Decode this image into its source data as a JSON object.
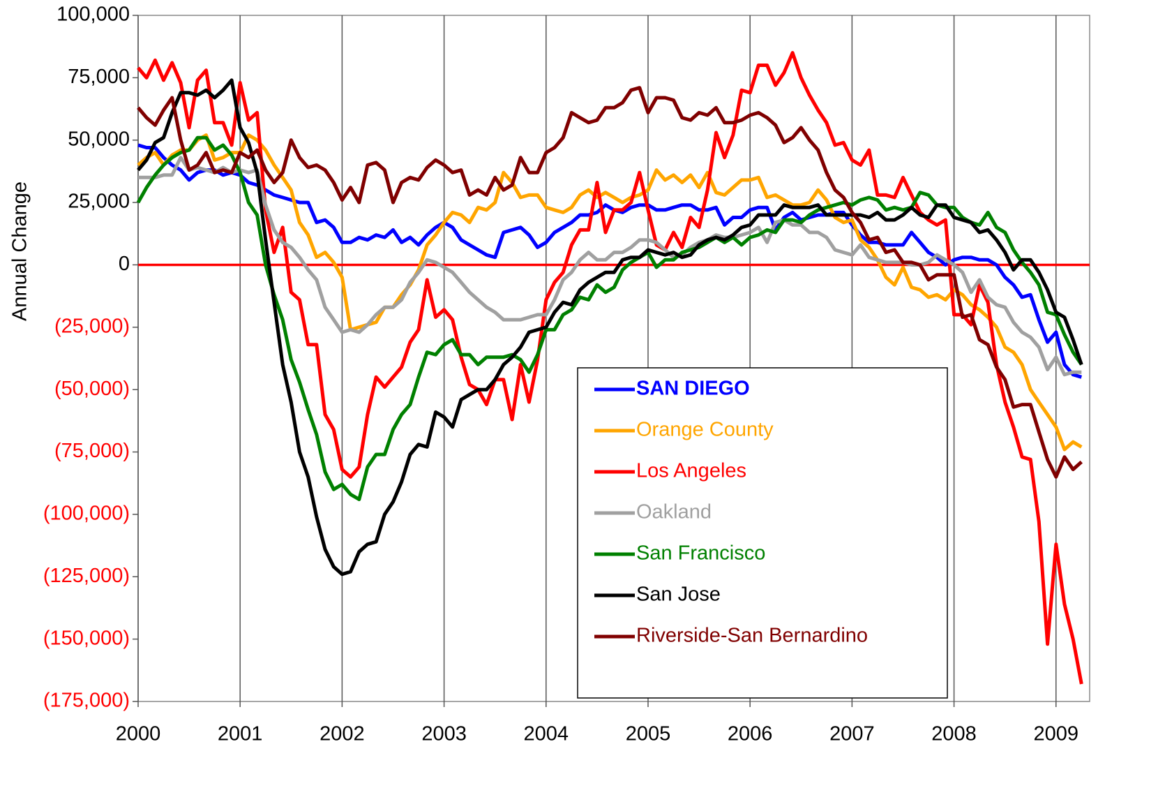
{
  "chart_data": {
    "type": "line",
    "ylabel": "Annual Change",
    "x": [
      2000,
      2000.083,
      2000.167,
      2000.25,
      2000.333,
      2000.417,
      2000.5,
      2000.583,
      2000.667,
      2000.75,
      2000.833,
      2000.917,
      2001,
      2001.083,
      2001.167,
      2001.25,
      2001.333,
      2001.417,
      2001.5,
      2001.583,
      2001.667,
      2001.75,
      2001.833,
      2001.917,
      2002,
      2002.083,
      2002.167,
      2002.25,
      2002.333,
      2002.417,
      2002.5,
      2002.583,
      2002.667,
      2002.75,
      2002.833,
      2002.917,
      2003,
      2003.083,
      2003.167,
      2003.25,
      2003.333,
      2003.417,
      2003.5,
      2003.583,
      2003.667,
      2003.75,
      2003.833,
      2003.917,
      2004,
      2004.083,
      2004.167,
      2004.25,
      2004.333,
      2004.417,
      2004.5,
      2004.583,
      2004.667,
      2004.75,
      2004.833,
      2004.917,
      2005,
      2005.083,
      2005.167,
      2005.25,
      2005.333,
      2005.417,
      2005.5,
      2005.583,
      2005.667,
      2005.75,
      2005.833,
      2005.917,
      2006,
      2006.083,
      2006.167,
      2006.25,
      2006.333,
      2006.417,
      2006.5,
      2006.583,
      2006.667,
      2006.75,
      2006.833,
      2006.917,
      2007,
      2007.083,
      2007.167,
      2007.25,
      2007.333,
      2007.417,
      2007.5,
      2007.583,
      2007.667,
      2007.75,
      2007.833,
      2007.917,
      2008,
      2008.083,
      2008.167,
      2008.25,
      2008.333,
      2008.417,
      2008.5,
      2008.583,
      2008.667,
      2008.75,
      2008.833,
      2008.917,
      2009,
      2009.083,
      2009.167,
      2009.25
    ],
    "series": [
      {
        "name": "SAN DIEGO",
        "color": "#0000ff",
        "bold": true,
        "values": [
          48000,
          47000,
          47000,
          43000,
          40000,
          38000,
          34000,
          37000,
          38000,
          38000,
          36000,
          37000,
          36000,
          33000,
          32000,
          30000,
          28000,
          27000,
          26000,
          25000,
          25000,
          17000,
          18000,
          15000,
          9000,
          9000,
          11000,
          10000,
          12000,
          11000,
          14000,
          9000,
          11000,
          8000,
          12000,
          15000,
          17000,
          15000,
          10000,
          8000,
          6000,
          4000,
          3000,
          13000,
          14000,
          15000,
          12000,
          7000,
          9000,
          13000,
          15000,
          17000,
          20000,
          20000,
          21000,
          24000,
          22000,
          21000,
          23000,
          24000,
          24000,
          22000,
          22000,
          23000,
          24000,
          24000,
          22000,
          22000,
          23000,
          16000,
          19000,
          19000,
          22000,
          23000,
          23000,
          14000,
          19000,
          21000,
          18000,
          19000,
          20000,
          20000,
          21000,
          21000,
          16000,
          12000,
          9000,
          9000,
          8000,
          8000,
          8000,
          13000,
          9000,
          5000,
          3000,
          0,
          2000,
          3000,
          3000,
          2000,
          2000,
          0,
          -5000,
          -8000,
          -13000,
          -12000,
          -22000,
          -31000,
          -27000,
          -40000,
          -44000,
          -45000
        ]
      },
      {
        "name": "Orange County",
        "color": "#ffa500",
        "values": [
          40000,
          43000,
          45000,
          40000,
          44000,
          46000,
          46000,
          50000,
          52000,
          42000,
          43000,
          45000,
          45000,
          52000,
          50000,
          46000,
          40000,
          35000,
          30000,
          17000,
          12000,
          3000,
          5000,
          1000,
          -5000,
          -26000,
          -25000,
          -24000,
          -23000,
          -17000,
          -17000,
          -12000,
          -8000,
          -2000,
          8000,
          12000,
          17000,
          21000,
          20000,
          17000,
          23000,
          22000,
          25000,
          37000,
          33000,
          27000,
          28000,
          28000,
          23000,
          22000,
          21000,
          23000,
          28000,
          30000,
          27000,
          29000,
          27000,
          25000,
          27000,
          28000,
          30000,
          38000,
          34000,
          36000,
          33000,
          36000,
          31000,
          37000,
          29000,
          28000,
          31000,
          34000,
          34000,
          35000,
          27000,
          28000,
          26000,
          24000,
          24000,
          25000,
          30000,
          26000,
          19000,
          17000,
          18000,
          10000,
          7000,
          2000,
          -5000,
          -8000,
          -1000,
          -9000,
          -10000,
          -13000,
          -12000,
          -14000,
          -10000,
          -12000,
          -16000,
          -18000,
          -21000,
          -25000,
          -33000,
          -35000,
          -40000,
          -50000,
          -55000,
          -60000,
          -65000,
          -74000,
          -71000,
          -73000
        ]
      },
      {
        "name": "Los Angeles",
        "color": "#ff0000",
        "values": [
          79000,
          75000,
          82000,
          74000,
          81000,
          73000,
          55000,
          74000,
          78000,
          57000,
          57000,
          48000,
          73000,
          58000,
          61000,
          22000,
          5000,
          15000,
          -11000,
          -14000,
          -32000,
          -32000,
          -60000,
          -66000,
          -82000,
          -85000,
          -81000,
          -60000,
          -45000,
          -49000,
          -45000,
          -41000,
          -31000,
          -26000,
          -6000,
          -21000,
          -18000,
          -22000,
          -37000,
          -48000,
          -50000,
          -56000,
          -46000,
          -46000,
          -62000,
          -40000,
          -55000,
          -38000,
          -14000,
          -7000,
          -3000,
          8000,
          14000,
          14000,
          33000,
          13000,
          22000,
          22000,
          25000,
          37000,
          22000,
          8000,
          6000,
          13000,
          7000,
          19000,
          15000,
          30000,
          53000,
          43000,
          52000,
          70000,
          69000,
          80000,
          80000,
          72000,
          77000,
          85000,
          75000,
          68000,
          62000,
          57000,
          48000,
          49000,
          42000,
          40000,
          46000,
          28000,
          28000,
          27000,
          35000,
          28000,
          21000,
          18000,
          16000,
          18000,
          -20000,
          -20000,
          -24000,
          -8000,
          -15000,
          -40000,
          -55000,
          -65000,
          -77000,
          -78000,
          -103000,
          -152000,
          -112000,
          -136000,
          -150000,
          -168000
        ]
      },
      {
        "name": "Oakland",
        "color": "#a0a0a0",
        "values": [
          35000,
          35000,
          35000,
          36000,
          36000,
          43000,
          38000,
          39000,
          38000,
          37000,
          39000,
          37000,
          38000,
          37000,
          38000,
          24000,
          14000,
          9000,
          7000,
          3000,
          -2000,
          -6000,
          -17000,
          -22000,
          -27000,
          -26000,
          -27000,
          -24000,
          -20000,
          -17000,
          -17000,
          -14000,
          -7000,
          -3000,
          2000,
          1000,
          -1000,
          -3000,
          -7000,
          -11000,
          -14000,
          -17000,
          -19000,
          -22000,
          -22000,
          -22000,
          -21000,
          -20000,
          -20000,
          -14000,
          -6000,
          -3000,
          2000,
          5000,
          2000,
          2000,
          5000,
          5000,
          7000,
          10000,
          10000,
          9000,
          6000,
          3000,
          4000,
          7000,
          9000,
          10000,
          12000,
          11000,
          11000,
          12000,
          13000,
          15000,
          9000,
          17000,
          18000,
          16000,
          16000,
          13000,
          13000,
          11000,
          6000,
          5000,
          4000,
          8000,
          3000,
          2000,
          1000,
          1000,
          1000,
          0,
          0,
          1000,
          4000,
          2000,
          0,
          -3000,
          -11000,
          -6000,
          -13000,
          -16000,
          -17000,
          -23000,
          -27000,
          -29000,
          -33000,
          -42000,
          -37000,
          -44000,
          -43000,
          -43000
        ]
      },
      {
        "name": "San Francisco",
        "color": "#008000",
        "values": [
          25000,
          31000,
          36000,
          40000,
          43000,
          45000,
          46000,
          51000,
          51000,
          46000,
          48000,
          44000,
          37000,
          25000,
          20000,
          0,
          -12000,
          -22000,
          -38000,
          -47000,
          -58000,
          -68000,
          -83000,
          -90000,
          -88000,
          -92000,
          -94000,
          -81000,
          -76000,
          -76000,
          -66000,
          -60000,
          -56000,
          -45000,
          -35000,
          -36000,
          -32000,
          -30000,
          -36000,
          -36000,
          -40000,
          -37000,
          -37000,
          -37000,
          -36000,
          -38000,
          -43000,
          -36000,
          -26000,
          -26000,
          -20000,
          -18000,
          -13000,
          -14000,
          -8000,
          -11000,
          -9000,
          -2000,
          1000,
          3000,
          5000,
          -1000,
          2000,
          2000,
          5000,
          6000,
          7000,
          9000,
          11000,
          9000,
          11000,
          8000,
          11000,
          12000,
          14000,
          13000,
          18000,
          18000,
          17000,
          20000,
          22000,
          23000,
          24000,
          25000,
          24000,
          26000,
          27000,
          26000,
          22000,
          23000,
          22000,
          23000,
          29000,
          28000,
          24000,
          23000,
          23000,
          19000,
          17000,
          16000,
          21000,
          15000,
          13000,
          6000,
          1000,
          -3000,
          -8000,
          -19000,
          -20000,
          -28000,
          -35000,
          -40000
        ]
      },
      {
        "name": "San Jose",
        "color": "#000000",
        "values": [
          38000,
          42000,
          49000,
          51000,
          61000,
          69000,
          69000,
          68000,
          70000,
          67000,
          70000,
          74000,
          55000,
          49000,
          37000,
          10000,
          -15000,
          -40000,
          -55000,
          -75000,
          -85000,
          -101000,
          -114000,
          -121000,
          -124000,
          -123000,
          -115000,
          -112000,
          -111000,
          -100000,
          -95000,
          -87000,
          -76000,
          -72000,
          -73000,
          -59000,
          -61000,
          -65000,
          -54000,
          -52000,
          -50000,
          -50000,
          -46000,
          -40000,
          -37000,
          -33000,
          -27000,
          -26000,
          -25000,
          -19000,
          -15000,
          -16000,
          -10000,
          -7000,
          -5000,
          -3000,
          -3000,
          2000,
          3000,
          3000,
          6000,
          5000,
          4000,
          5000,
          3000,
          4000,
          8000,
          10000,
          11000,
          10000,
          12000,
          15000,
          16000,
          20000,
          20000,
          20000,
          24000,
          23000,
          23000,
          23000,
          24000,
          20000,
          20000,
          20000,
          20000,
          20000,
          19000,
          21000,
          18000,
          18000,
          20000,
          23000,
          20000,
          19000,
          24000,
          24000,
          19000,
          18000,
          17000,
          13000,
          14000,
          10000,
          5000,
          -2000,
          2000,
          2000,
          -3000,
          -10000,
          -19000,
          -21000,
          -30000,
          -40000
        ]
      },
      {
        "name": "Riverside-San Bernardino",
        "color": "#800000",
        "values": [
          63000,
          59000,
          56000,
          62000,
          67000,
          50000,
          38000,
          40000,
          45000,
          37000,
          38000,
          37000,
          45000,
          43000,
          46000,
          38000,
          33000,
          37000,
          50000,
          43000,
          39000,
          40000,
          38000,
          33000,
          26000,
          31000,
          25000,
          40000,
          41000,
          38000,
          25000,
          33000,
          35000,
          34000,
          39000,
          42000,
          40000,
          37000,
          38000,
          28000,
          30000,
          28000,
          35000,
          30000,
          32000,
          43000,
          37000,
          37000,
          45000,
          47000,
          51000,
          61000,
          59000,
          57000,
          58000,
          63000,
          63000,
          65000,
          70000,
          71000,
          61000,
          67000,
          67000,
          66000,
          59000,
          58000,
          61000,
          60000,
          63000,
          57000,
          57000,
          58000,
          60000,
          61000,
          59000,
          56000,
          49000,
          51000,
          55000,
          50000,
          46000,
          37000,
          30000,
          27000,
          21000,
          17000,
          10000,
          11000,
          5000,
          6000,
          1000,
          1000,
          0,
          -6000,
          -4000,
          -4000,
          -4000,
          -21000,
          -20000,
          -30000,
          -32000,
          -41000,
          -46000,
          -57000,
          -56000,
          -56000,
          -67000,
          -78000,
          -85000,
          -77000,
          -82000,
          -79000
        ]
      }
    ],
    "xlim": [
      2000,
      2009.33
    ],
    "xticks": [
      2000,
      2001,
      2002,
      2003,
      2004,
      2005,
      2006,
      2007,
      2008,
      2009
    ],
    "ylim": [
      -175000,
      100000
    ],
    "yticks": [
      {
        "value": 100000,
        "label": "100,000"
      },
      {
        "value": 75000,
        "label": "75,000"
      },
      {
        "value": 50000,
        "label": "50,000"
      },
      {
        "value": 25000,
        "label": "25,000"
      },
      0,
      {
        "value": -25000,
        "label": "(25,000)"
      },
      {
        "value": -50000,
        "label": "(50,000)"
      },
      {
        "value": -75000,
        "label": "(75,000)"
      },
      {
        "value": -100000,
        "label": "(100,000)"
      },
      {
        "value": -125000,
        "label": "(125,000)"
      },
      {
        "value": -150000,
        "label": "(150,000)"
      },
      {
        "value": -175000,
        "label": "(175,000)"
      }
    ],
    "negative_tick_color": "#ff0000",
    "reference_line": {
      "value": 0,
      "color": "#ff0000"
    },
    "xgrid": true,
    "legend": "lower right"
  }
}
